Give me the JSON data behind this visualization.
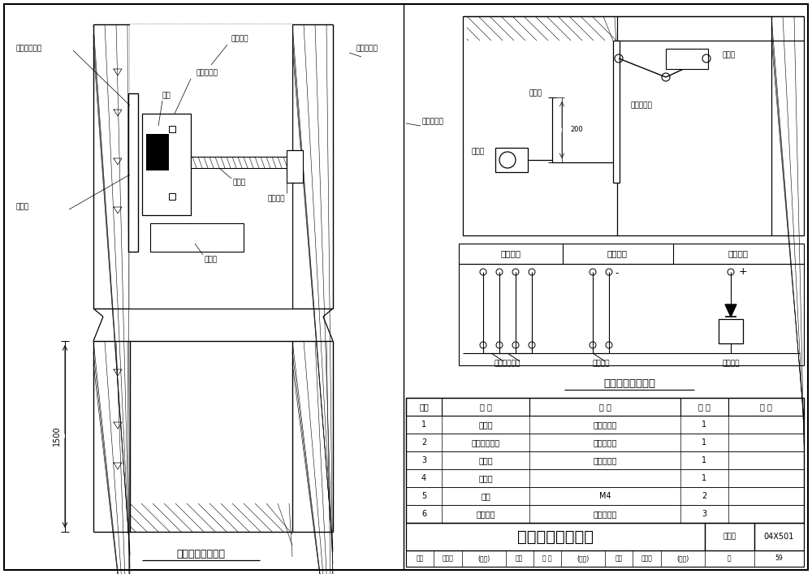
{
  "bg_color": "#ffffff",
  "title_main": "电动防火门安装图",
  "title_wiring": "电动防火门接线图",
  "subtitle_left": "电动防火门安装图",
  "table_headers": [
    "序号",
    "名 称",
    "规 格",
    "数 量",
    "备 注"
  ],
  "table_rows": [
    [
      "1",
      "释放器",
      "见设计选型",
      "1",
      ""
    ],
    [
      "2",
      "电动防火门栓",
      "见设计选型",
      "1",
      ""
    ],
    [
      "3",
      "闭门器",
      "见设计选型",
      "1",
      ""
    ],
    [
      "4",
      "接线盒",
      "",
      "1",
      ""
    ],
    [
      "5",
      "螺钉",
      "M4",
      "2",
      ""
    ],
    [
      "6",
      "安装螺钉",
      "由设备配置",
      "3",
      ""
    ]
  ],
  "footer_atlas": "图集号",
  "footer_atlas_val": "04X501",
  "footer_page_label": "页",
  "footer_page_val": "59",
  "signal_headers": [
    "联动信号",
    "返回信号",
    "控制信号"
  ],
  "labels_wiring": [
    "防火门释放器",
    "微动开关",
    "铁磁线圈"
  ]
}
